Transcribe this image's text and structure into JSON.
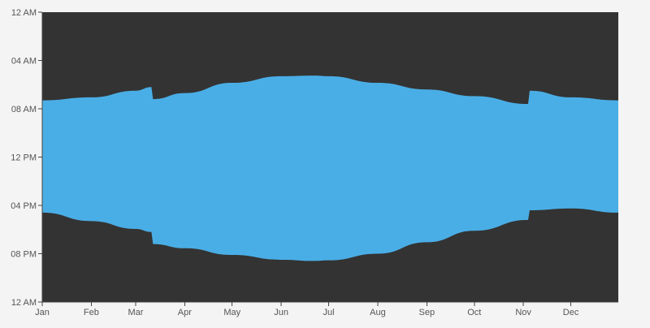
{
  "chart_data": {
    "type": "area",
    "title": "",
    "xlabel": "",
    "ylabel": "",
    "x_domain": [
      "2023-01-01",
      "2023-12-31"
    ],
    "x_ticks": [
      {
        "label": "Jan",
        "date": "2023-01-01"
      },
      {
        "label": "Feb",
        "date": "2023-02-01"
      },
      {
        "label": "Mar",
        "date": "2023-03-01"
      },
      {
        "label": "Apr",
        "date": "2023-04-01"
      },
      {
        "label": "May",
        "date": "2023-05-01"
      },
      {
        "label": "Jun",
        "date": "2023-06-01"
      },
      {
        "label": "Jul",
        "date": "2023-07-01"
      },
      {
        "label": "Aug",
        "date": "2023-08-01"
      },
      {
        "label": "Sep",
        "date": "2023-09-01"
      },
      {
        "label": "Oct",
        "date": "2023-10-01"
      },
      {
        "label": "Nov",
        "date": "2023-11-01"
      },
      {
        "label": "Dec",
        "date": "2023-12-01"
      }
    ],
    "y_domain_hours": [
      0,
      24
    ],
    "y_ticks": [
      {
        "label": "12 AM",
        "hour": 0
      },
      {
        "label": "04 AM",
        "hour": 4
      },
      {
        "label": "08 AM",
        "hour": 8
      },
      {
        "label": "12 PM",
        "hour": 12
      },
      {
        "label": "04 PM",
        "hour": 16
      },
      {
        "label": "08 PM",
        "hour": 20
      },
      {
        "label": "12 AM",
        "hour": 24
      }
    ],
    "colors": {
      "daylight": "#4aaee6",
      "night": "#333333",
      "background": "#f4f4f4"
    },
    "series": [
      {
        "x": [
          "2023-01-01",
          "2023-02-01",
          "2023-03-01",
          "2023-03-11",
          "2023-03-12",
          "2023-04-01",
          "2023-05-01",
          "2023-06-01",
          "2023-06-22",
          "2023-07-01",
          "2023-08-01",
          "2023-09-01",
          "2023-10-01",
          "2023-11-04",
          "2023-11-05",
          "2023-12-01",
          "2023-12-31"
        ],
        "sunrise": [
          7.3,
          7.05,
          6.5,
          6.2,
          7.2,
          6.7,
          5.85,
          5.3,
          5.25,
          5.3,
          5.85,
          6.4,
          6.95,
          7.6,
          6.5,
          7.05,
          7.3
        ],
        "sunset": [
          16.6,
          17.3,
          17.95,
          18.2,
          19.2,
          19.55,
          20.1,
          20.5,
          20.6,
          20.55,
          20.0,
          19.05,
          18.1,
          17.2,
          16.4,
          16.25,
          16.6
        ]
      }
    ]
  }
}
